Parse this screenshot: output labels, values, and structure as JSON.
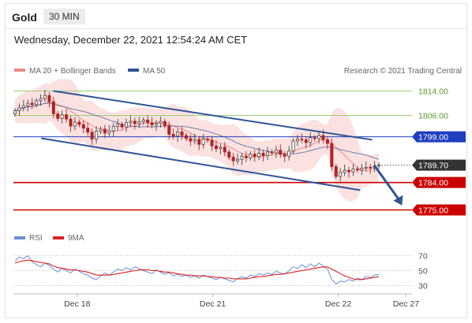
{
  "header": {
    "instrument": "Gold",
    "timeframe": "30 MIN",
    "datetime": "Wednesday, December 22, 2021 12:54:24 AM CET"
  },
  "legend": {
    "bollinger": "MA 20 + Bollinger Bands",
    "ma50": "MA 50",
    "copyright": "Research © 2021 Trading Central",
    "rsi": "RSI",
    "rsi_ma": "9MA"
  },
  "colors": {
    "bollinger": "#f08a8a",
    "bollinger_band_fill": "#fbdcdc",
    "ma50": "#2f5597",
    "channel": "#2f5597",
    "resistance_green": "#9acd72",
    "pivot_blue": "#1f3fbf",
    "support_red": "#cc0000",
    "candle_up": "#444444",
    "candle_down": "#b22222",
    "current_price_bg": "#333333",
    "rsi": "#6a8fd8",
    "rsi_ma": "#e02020"
  },
  "chart_data": {
    "type": "candlestick",
    "y_range": [
      1771,
      1818
    ],
    "x_ticks": [
      "Dec 18",
      "Dec 21",
      "Dec 22",
      "Dec 27"
    ],
    "x_tick_positions": [
      0.16,
      0.5,
      0.815,
      0.985
    ],
    "levels": [
      {
        "value": 1814.0,
        "label": "1814.00",
        "style": "resistance"
      },
      {
        "value": 1806.0,
        "label": "1806.00",
        "style": "resistance"
      },
      {
        "value": 1799.0,
        "label": "1799.00",
        "style": "pivot"
      },
      {
        "value": 1784.0,
        "label": "1784.00",
        "style": "support"
      },
      {
        "value": 1775.0,
        "label": "1775.00",
        "style": "support"
      }
    ],
    "current_price": {
      "value": 1789.7,
      "label": "1789.70"
    },
    "channel": {
      "upper": [
        [
          0.1,
          1814.0
        ],
        [
          0.9,
          1798.0
        ]
      ],
      "lower": [
        [
          0.07,
          1798.5
        ],
        [
          0.87,
          1781.5
        ]
      ]
    },
    "projection_arrow": {
      "from": [
        0.905,
        1789.7
      ],
      "to": [
        0.975,
        1776.5
      ]
    },
    "closes": [
      1807.5,
      1808.5,
      1809.2,
      1810.0,
      1809.5,
      1810.8,
      1811.5,
      1812.5,
      1810.5,
      1806.5,
      1805.0,
      1806.2,
      1804.8,
      1802.5,
      1803.8,
      1803.0,
      1801.8,
      1800.5,
      1798.2,
      1800.8,
      1801.5,
      1800.2,
      1800.9,
      1802.4,
      1803.1,
      1802.2,
      1803.6,
      1804.1,
      1803.3,
      1803.9,
      1804.5,
      1803.6,
      1802.9,
      1803.4,
      1804.0,
      1802.6,
      1799.8,
      1799.2,
      1800.6,
      1799.4,
      1798.4,
      1797.6,
      1798.1,
      1796.5,
      1798.2,
      1797.9,
      1796.0,
      1795.1,
      1795.6,
      1794.0,
      1792.3,
      1791.1,
      1791.6,
      1792.6,
      1792.1,
      1793.3,
      1792.5,
      1793.6,
      1792.8,
      1794.0,
      1793.7,
      1794.6,
      1793.2,
      1792.6,
      1794.3,
      1797.6,
      1798.2,
      1798.0,
      1797.1,
      1798.7,
      1798.4,
      1799.4,
      1798.0,
      1796.8,
      1789.2,
      1786.0,
      1787.3,
      1788.0,
      1787.5,
      1788.4,
      1788.1,
      1788.7,
      1789.0,
      1788.8,
      1789.4,
      1789.7
    ],
    "rsi_range": [
      20,
      80
    ],
    "rsi_levels": [
      70,
      50,
      30
    ],
    "rsi_values": [
      63,
      68,
      66,
      70,
      62,
      58,
      55,
      60,
      57,
      52,
      48,
      53,
      50,
      47,
      52,
      49,
      46,
      44,
      40,
      38,
      43,
      47,
      44,
      48,
      52,
      50,
      54,
      51,
      55,
      53,
      50,
      48,
      46,
      51,
      48,
      45,
      47,
      43,
      45,
      42,
      44,
      41,
      43,
      40,
      44,
      42,
      40,
      38,
      41,
      39,
      37,
      35,
      39,
      42,
      40,
      44,
      42,
      46,
      44,
      47,
      45,
      49,
      47,
      45,
      50,
      55,
      53,
      58,
      54,
      59,
      55,
      60,
      56,
      52,
      38,
      32,
      36,
      35,
      38,
      36,
      40,
      38,
      42,
      41,
      44,
      45
    ],
    "rsi_ma_values": [
      60,
      62,
      63,
      64,
      63,
      62,
      61,
      60,
      59,
      56,
      54,
      53,
      52,
      51,
      51,
      50,
      49,
      48,
      46,
      44,
      44,
      44,
      44,
      45,
      46,
      47,
      48,
      49,
      50,
      51,
      51,
      51,
      50,
      50,
      49,
      48,
      48,
      47,
      46,
      45,
      44,
      44,
      43,
      43,
      43,
      42,
      42,
      41,
      41,
      40,
      40,
      39,
      39,
      39,
      39,
      40,
      41,
      42,
      42,
      43,
      44,
      45,
      45,
      46,
      47,
      48,
      49,
      50,
      51,
      52,
      53,
      54,
      55,
      55,
      52,
      49,
      46,
      43,
      41,
      39,
      38,
      38,
      39,
      40,
      41,
      42
    ],
    "rsi_ticks": [
      "70",
      "50",
      "30"
    ]
  }
}
